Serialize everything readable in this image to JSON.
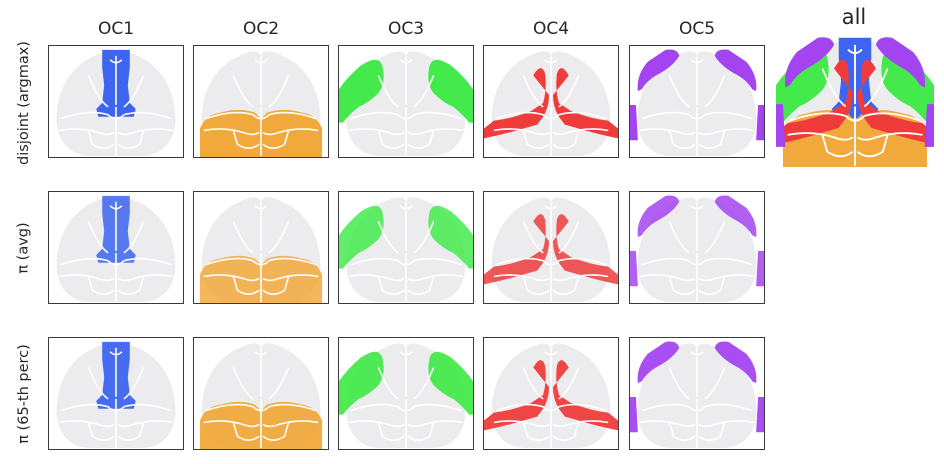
{
  "columns": [
    "OC1",
    "OC2",
    "OC3",
    "OC4",
    "OC5",
    "all"
  ],
  "rows": [
    "disjoint (argmax)",
    "π (avg)",
    "π (65-th perc)"
  ],
  "colors": {
    "OC1": "#3d65f0",
    "OC2": "#f2a93b",
    "OC3": "#44ea4c",
    "OC4": "#ef3c3a",
    "OC5": "#a444f0",
    "background_brain": "#ececef",
    "outline": "#ffffff"
  },
  "regions": {
    "OC1": "central-anterior strip",
    "OC2": "posterior lobes",
    "OC3": "lateral anterior bands",
    "OC4": "central lateral bands",
    "OC5": "outer anterior rim"
  }
}
